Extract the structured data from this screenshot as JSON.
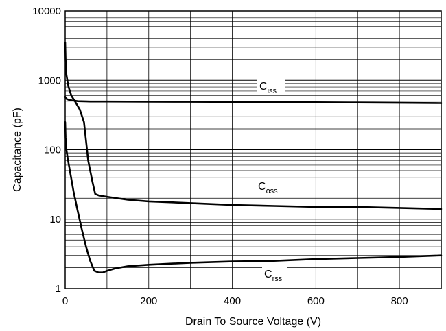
{
  "chart_data": {
    "type": "line",
    "xlabel": "Drain To Source Voltage (V)",
    "ylabel": "Capacitance (pF)",
    "xlim": [
      0,
      900
    ],
    "ylim": [
      1,
      10000
    ],
    "yscale": "log",
    "grid": true,
    "x_ticks": [
      "0",
      "200",
      "400",
      "600",
      "800"
    ],
    "y_ticks": [
      "1",
      "10",
      "100",
      "1000",
      "10000"
    ],
    "series": [
      {
        "name": "Ciss",
        "label_main": "C",
        "label_sub": "iss",
        "x": [
          0,
          1,
          3,
          10,
          30,
          60,
          100,
          200,
          300,
          400,
          500,
          600,
          700,
          800,
          900
        ],
        "y": [
          580,
          560,
          540,
          520,
          500,
          495,
          495,
          492,
          490,
          488,
          485,
          482,
          478,
          474,
          470
        ]
      },
      {
        "name": "Coss",
        "label_main": "C",
        "label_sub": "oss",
        "x": [
          0,
          1,
          3,
          8,
          15,
          25,
          35,
          45,
          55,
          65,
          72,
          80,
          100,
          150,
          200,
          300,
          400,
          500,
          600,
          700,
          800,
          900
        ],
        "y": [
          3500,
          2000,
          1200,
          800,
          600,
          480,
          380,
          250,
          70,
          35,
          23,
          22,
          21,
          19,
          18,
          17,
          16,
          15.5,
          15,
          15,
          14.5,
          14
        ]
      },
      {
        "name": "Crss",
        "label_main": "C",
        "label_sub": "rss",
        "x": [
          0,
          1,
          3,
          6,
          10,
          20,
          30,
          40,
          50,
          60,
          70,
          80,
          90,
          100,
          120,
          150,
          200,
          300,
          400,
          500,
          600,
          700,
          800,
          900
        ],
        "y": [
          250,
          150,
          100,
          75,
          55,
          25,
          13,
          7,
          4,
          2.5,
          1.8,
          1.7,
          1.7,
          1.8,
          1.95,
          2.1,
          2.2,
          2.35,
          2.45,
          2.5,
          2.65,
          2.75,
          2.85,
          3.0
        ]
      }
    ]
  }
}
